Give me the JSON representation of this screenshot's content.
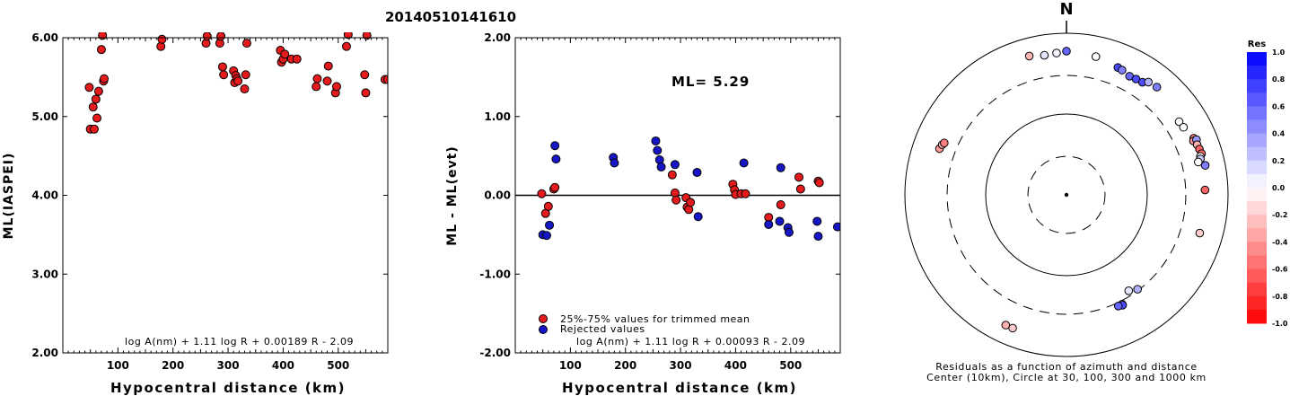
{
  "title": "20140510141610",
  "chart_data": [
    {
      "type": "scatter",
      "ylabel": "ML(IASPEI)",
      "xlabel": "Hypocentral distance (km)",
      "xlim": [
        0,
        590
      ],
      "ylim": [
        2.0,
        6.0
      ],
      "xticks": [
        100,
        200,
        300,
        400,
        500
      ],
      "yticks": [
        2.0,
        3.0,
        4.0,
        5.0,
        6.0
      ],
      "ytick_labels": [
        "2.00",
        "3.00",
        "4.00",
        "5.00",
        "6.00"
      ],
      "formula": "log A(nm) + 1.11 log R + 0.00189 R - 2.09",
      "point_color": "#e41a1c",
      "x": [
        48,
        50,
        55,
        57,
        60,
        62,
        65,
        70,
        72,
        74,
        75,
        178,
        180,
        260,
        262,
        285,
        287,
        290,
        292,
        310,
        312,
        314,
        316,
        318,
        330,
        332,
        334,
        395,
        397,
        400,
        403,
        415,
        425,
        460,
        462,
        480,
        482,
        495,
        497,
        515,
        518,
        548,
        550,
        552,
        585,
        590
      ],
      "y": [
        5.37,
        4.84,
        5.12,
        4.84,
        5.22,
        4.98,
        5.32,
        5.85,
        6.03,
        5.45,
        5.48,
        5.89,
        5.98,
        5.93,
        6.02,
        5.93,
        6.02,
        5.63,
        5.53,
        5.58,
        5.43,
        5.52,
        5.48,
        5.45,
        5.35,
        5.53,
        5.93,
        5.84,
        5.69,
        5.73,
        5.79,
        5.73,
        5.73,
        5.38,
        5.48,
        5.45,
        5.64,
        5.3,
        5.38,
        5.89,
        6.04,
        5.53,
        5.3,
        6.03,
        5.47,
        5.47
      ]
    },
    {
      "type": "scatter",
      "ylabel": "ML - ML(evt)",
      "xlabel": "Hypocentral distance (km)",
      "xlim": [
        0,
        590
      ],
      "ylim": [
        -2.0,
        2.0
      ],
      "xticks": [
        100,
        200,
        300,
        400,
        500
      ],
      "yticks": [
        -2.0,
        -1.0,
        0.0,
        1.0,
        2.0
      ],
      "ytick_labels": [
        "-2.00",
        "-1.00",
        "0.00",
        "1.00",
        "2.00"
      ],
      "ml_label": "ML= 5.29",
      "formula": "log A(nm) + 1.11 log R + 0.00093 R - 2.09",
      "legend": [
        {
          "label": "25%-75% values for trimmed mean",
          "color": "#e41a1c"
        },
        {
          "label": "Rejected values",
          "color": "#1616c8"
        }
      ],
      "series": [
        {
          "name": "25%-75% values for trimmed mean",
          "color": "#e41a1c",
          "x": [
            48,
            55,
            60,
            70,
            72,
            285,
            290,
            292,
            310,
            312,
            315,
            318,
            395,
            398,
            400,
            410,
            418,
            460,
            482,
            515,
            518,
            550,
            552
          ],
          "y": [
            0.02,
            -0.23,
            -0.14,
            0.08,
            0.1,
            0.26,
            0.03,
            -0.06,
            -0.03,
            -0.15,
            -0.18,
            -0.09,
            0.14,
            0.07,
            0.01,
            0.02,
            0.02,
            -0.28,
            -0.12,
            0.23,
            0.08,
            0.18,
            0.16
          ]
        },
        {
          "name": "Rejected values",
          "color": "#1616c8",
          "x": [
            50,
            57,
            62,
            72,
            74,
            178,
            180,
            255,
            258,
            262,
            265,
            290,
            330,
            332,
            415,
            460,
            480,
            482,
            495,
            497,
            548,
            550,
            585
          ],
          "y": [
            -0.5,
            -0.51,
            -0.38,
            0.63,
            0.46,
            0.48,
            0.41,
            0.69,
            0.57,
            0.45,
            0.36,
            0.39,
            0.29,
            -0.27,
            0.41,
            -0.37,
            -0.33,
            0.35,
            -0.41,
            -0.47,
            -0.33,
            -0.52,
            -0.4
          ]
        }
      ]
    },
    {
      "type": "scatter",
      "subtype": "polar-residuals",
      "north_label": "N",
      "caption_line1": "Residuals as a function of azimuth and distance",
      "caption_line2": "Center (10km), Circle at 30, 100, 300 and 1000 km",
      "rings_km": [
        30,
        100,
        300,
        1000
      ],
      "center_km": 10,
      "colorbar": {
        "title": "Res",
        "min": -1.0,
        "max": 1.0,
        "tick_labels": [
          "1.0",
          "0.8",
          "0.6",
          "0.4",
          "0.2",
          "0.0",
          "-0.2",
          "-0.4",
          "-0.6",
          "-0.8",
          "-1.0"
        ],
        "positive_color": "#0000ff",
        "negative_color": "#ff0000"
      },
      "points": [
        {
          "azimuth": 345,
          "distance_km": 600,
          "residual": -0.3
        },
        {
          "azimuth": 351,
          "distance_km": 560,
          "residual": 0.1
        },
        {
          "azimuth": 356,
          "distance_km": 575,
          "residual": 0.05
        },
        {
          "azimuth": 0,
          "distance_km": 600,
          "residual": 0.6
        },
        {
          "azimuth": 12,
          "distance_km": 560,
          "residual": 0.0
        },
        {
          "azimuth": 22,
          "distance_km": 500,
          "residual": 0.7
        },
        {
          "azimuth": 24,
          "distance_km": 490,
          "residual": 0.5
        },
        {
          "azimuth": 28,
          "distance_km": 460,
          "residual": 0.6
        },
        {
          "azimuth": 31,
          "distance_km": 470,
          "residual": 0.7
        },
        {
          "azimuth": 34,
          "distance_km": 480,
          "residual": 0.7
        },
        {
          "azimuth": 36,
          "distance_km": 530,
          "residual": 0.3
        },
        {
          "azimuth": 40,
          "distance_km": 550,
          "residual": 0.5
        },
        {
          "azimuth": 57,
          "distance_km": 460,
          "residual": 0.0
        },
        {
          "azimuth": 60,
          "distance_km": 470,
          "residual": 0.0
        },
        {
          "azimuth": 66,
          "distance_km": 530,
          "residual": -0.5
        },
        {
          "azimuth": 67,
          "distance_km": 510,
          "residual": -0.4
        },
        {
          "azimuth": 67,
          "distance_km": 560,
          "residual": 0.4
        },
        {
          "azimuth": 69,
          "distance_km": 540,
          "residual": -0.3
        },
        {
          "azimuth": 71,
          "distance_km": 550,
          "residual": -0.6
        },
        {
          "azimuth": 73,
          "distance_km": 560,
          "residual": -0.6
        },
        {
          "azimuth": 74,
          "distance_km": 530,
          "residual": 0.0
        },
        {
          "azimuth": 75,
          "distance_km": 520,
          "residual": 0.2
        },
        {
          "azimuth": 76,
          "distance_km": 480,
          "residual": 0.0
        },
        {
          "azimuth": 78,
          "distance_km": 570,
          "residual": 0.5
        },
        {
          "azimuth": 88,
          "distance_km": 520,
          "residual": -0.6
        },
        {
          "azimuth": 106,
          "distance_km": 520,
          "residual": -0.2
        },
        {
          "azimuth": 143,
          "distance_km": 290,
          "residual": 0.3
        },
        {
          "azimuth": 147,
          "distance_km": 260,
          "residual": 0.1
        },
        {
          "azimuth": 153,
          "distance_km": 330,
          "residual": 0.0
        },
        {
          "azimuth": 153,
          "distance_km": 340,
          "residual": 0.7
        },
        {
          "azimuth": 155,
          "distance_km": 330,
          "residual": 0.6
        },
        {
          "azimuth": 202,
          "distance_km": 600,
          "residual": -0.2
        },
        {
          "azimuth": 205,
          "distance_km": 600,
          "residual": -0.3
        },
        {
          "azimuth": 290,
          "distance_km": 470,
          "residual": -0.4
        },
        {
          "azimuth": 292,
          "distance_km": 455,
          "residual": -0.3
        },
        {
          "azimuth": 293,
          "distance_km": 440,
          "residual": -0.5
        }
      ]
    }
  ]
}
